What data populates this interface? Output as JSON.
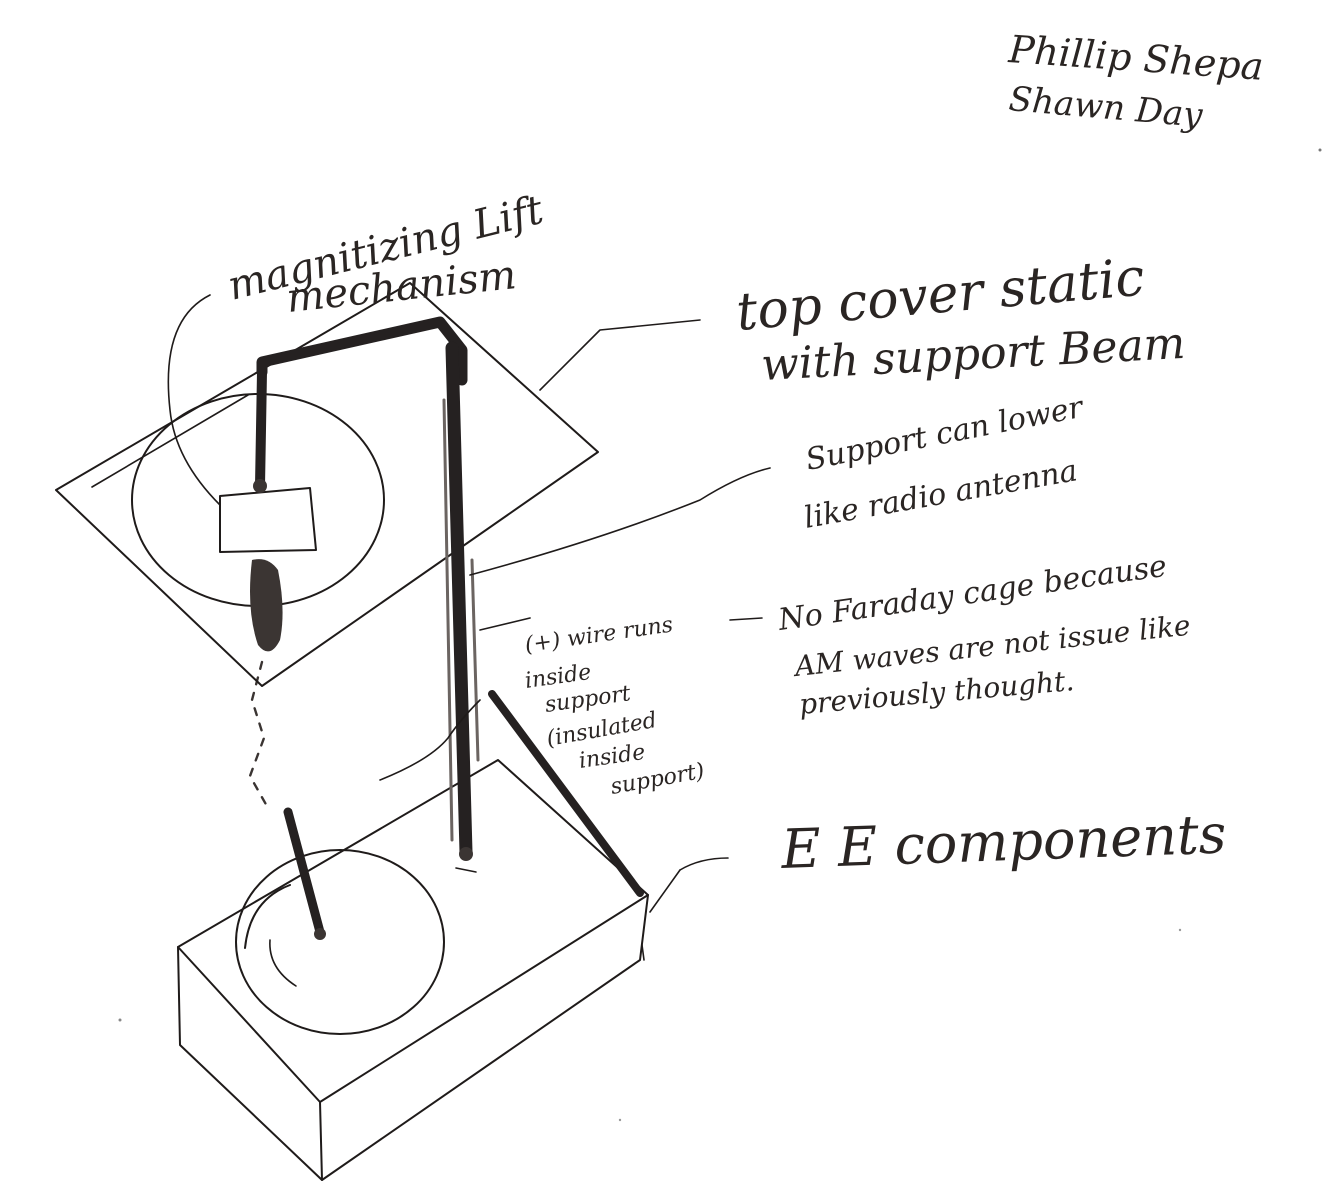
{
  "authors": [
    "Phillip Shepa",
    "Shawn Day"
  ],
  "labels": {
    "lift_mechanism": [
      "magnitizing Lift",
      "mechanism"
    ],
    "top_cover": [
      "top cover static",
      "with support Beam"
    ],
    "support_lower": [
      "Support can lower",
      "like radio antenna"
    ],
    "wire": [
      "(+) wire runs",
      "inside",
      "support",
      "(insulated",
      "inside",
      "support)"
    ],
    "faraday": [
      "No Faraday cage because",
      "AM waves are not issue like",
      "previously thought."
    ],
    "ee_components": "E E components"
  }
}
